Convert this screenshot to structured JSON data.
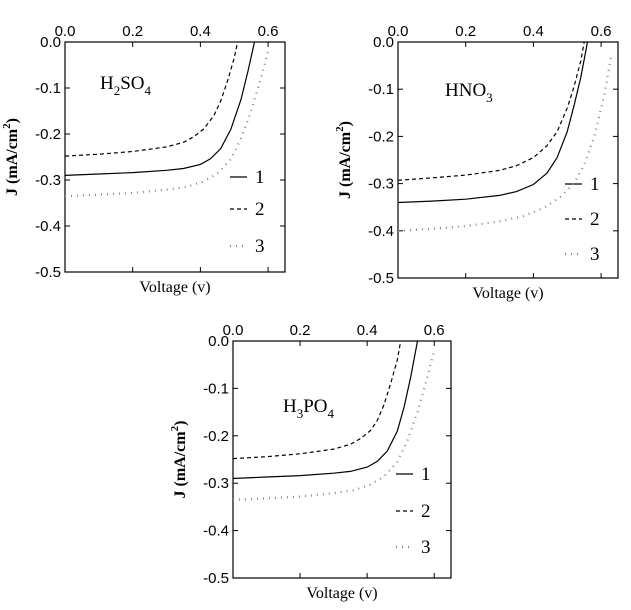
{
  "chart_data": [
    {
      "type": "line",
      "label_main": "H",
      "label_sub1": "2",
      "label_mid": "SO",
      "label_sub2": "4",
      "xlabel": "Voltage (v)",
      "ylabel_main": "J (mA/cm",
      "ylabel_sup": "2",
      "ylabel_end": ")",
      "xlim": [
        0,
        0.65
      ],
      "ylim": [
        -0.5,
        0.0
      ],
      "xticks": [
        "0.0",
        "0.2",
        "0.4",
        "0.6"
      ],
      "yticks": [
        "0.0",
        "-0.1",
        "-0.2",
        "-0.3",
        "-0.4",
        "-0.5"
      ],
      "legend": "right",
      "series": [
        {
          "name": "1",
          "style": "solid",
          "x": [
            0.0,
            0.1,
            0.2,
            0.3,
            0.35,
            0.4,
            0.43,
            0.46,
            0.49,
            0.52,
            0.54,
            0.56
          ],
          "y": [
            -0.29,
            -0.287,
            -0.284,
            -0.279,
            -0.275,
            -0.266,
            -0.254,
            -0.232,
            -0.19,
            -0.125,
            -0.065,
            0.0
          ]
        },
        {
          "name": "2",
          "style": "dashed",
          "x": [
            0.0,
            0.1,
            0.2,
            0.3,
            0.35,
            0.38,
            0.41,
            0.44,
            0.46,
            0.48,
            0.5,
            0.51
          ],
          "y": [
            -0.248,
            -0.244,
            -0.238,
            -0.228,
            -0.218,
            -0.206,
            -0.189,
            -0.16,
            -0.128,
            -0.085,
            -0.035,
            0.0
          ]
        },
        {
          "name": "3",
          "style": "dotted",
          "x": [
            0.0,
            0.1,
            0.2,
            0.3,
            0.36,
            0.41,
            0.45,
            0.49,
            0.52,
            0.55,
            0.58,
            0.6
          ],
          "y": [
            -0.335,
            -0.332,
            -0.328,
            -0.321,
            -0.315,
            -0.303,
            -0.286,
            -0.255,
            -0.21,
            -0.15,
            -0.075,
            -0.02
          ]
        }
      ]
    },
    {
      "type": "line",
      "label_main": "HNO",
      "label_sub1": "3",
      "label_mid": "",
      "label_sub2": "",
      "xlabel": "Voltage (v)",
      "ylabel_main": "J (mA/cm",
      "ylabel_sup": "2",
      "ylabel_end": ")",
      "xlim": [
        0,
        0.65
      ],
      "ylim": [
        -0.5,
        0.0
      ],
      "xticks": [
        "0.0",
        "0.2",
        "0.4",
        "0.6"
      ],
      "yticks": [
        "0.0",
        "-0.1",
        "-0.2",
        "-0.3",
        "-0.4",
        "-0.5"
      ],
      "legend": "right",
      "series": [
        {
          "name": "1",
          "style": "solid",
          "x": [
            0.0,
            0.1,
            0.2,
            0.3,
            0.35,
            0.4,
            0.44,
            0.47,
            0.5,
            0.52,
            0.54,
            0.56
          ],
          "y": [
            -0.34,
            -0.337,
            -0.333,
            -0.325,
            -0.317,
            -0.302,
            -0.278,
            -0.245,
            -0.19,
            -0.135,
            -0.075,
            0.0
          ]
        },
        {
          "name": "2",
          "style": "dashed",
          "x": [
            0.0,
            0.1,
            0.2,
            0.3,
            0.35,
            0.4,
            0.44,
            0.47,
            0.5,
            0.52,
            0.54,
            0.55
          ],
          "y": [
            -0.293,
            -0.288,
            -0.282,
            -0.272,
            -0.262,
            -0.245,
            -0.22,
            -0.19,
            -0.14,
            -0.095,
            -0.04,
            0.0
          ]
        },
        {
          "name": "3",
          "style": "dotted",
          "x": [
            0.0,
            0.1,
            0.2,
            0.3,
            0.37,
            0.43,
            0.48,
            0.52,
            0.55,
            0.58,
            0.61,
            0.63
          ],
          "y": [
            -0.4,
            -0.396,
            -0.39,
            -0.38,
            -0.369,
            -0.352,
            -0.328,
            -0.3,
            -0.26,
            -0.2,
            -0.11,
            -0.03
          ]
        }
      ]
    },
    {
      "type": "line",
      "label_main": "H",
      "label_sub1": "3",
      "label_mid": "PO",
      "label_sub2": "4",
      "xlabel": "Voltage (v)",
      "ylabel_main": "J (mA/cm",
      "ylabel_sup": "2",
      "ylabel_end": ")",
      "xlim": [
        0,
        0.65
      ],
      "ylim": [
        -0.5,
        0.0
      ],
      "xticks": [
        "0.0",
        "0.2",
        "0.4",
        "0.6"
      ],
      "yticks": [
        "0.0",
        "-0.1",
        "-0.2",
        "-0.3",
        "-0.4",
        "-0.5"
      ],
      "legend": "right",
      "series": [
        {
          "name": "1",
          "style": "solid",
          "x": [
            0.0,
            0.1,
            0.2,
            0.3,
            0.35,
            0.4,
            0.43,
            0.46,
            0.49,
            0.51,
            0.53,
            0.55
          ],
          "y": [
            -0.29,
            -0.287,
            -0.284,
            -0.279,
            -0.275,
            -0.266,
            -0.254,
            -0.232,
            -0.19,
            -0.14,
            -0.075,
            0.0
          ]
        },
        {
          "name": "2",
          "style": "dashed",
          "x": [
            0.0,
            0.1,
            0.2,
            0.3,
            0.35,
            0.38,
            0.41,
            0.43,
            0.45,
            0.47,
            0.49,
            0.5
          ],
          "y": [
            -0.248,
            -0.244,
            -0.238,
            -0.228,
            -0.218,
            -0.206,
            -0.189,
            -0.168,
            -0.135,
            -0.09,
            -0.04,
            0.0
          ]
        },
        {
          "name": "3",
          "style": "dotted",
          "x": [
            0.0,
            0.1,
            0.2,
            0.3,
            0.36,
            0.41,
            0.45,
            0.49,
            0.52,
            0.55,
            0.58,
            0.6
          ],
          "y": [
            -0.335,
            -0.332,
            -0.328,
            -0.321,
            -0.315,
            -0.303,
            -0.286,
            -0.255,
            -0.21,
            -0.15,
            -0.075,
            -0.02
          ]
        }
      ]
    }
  ]
}
